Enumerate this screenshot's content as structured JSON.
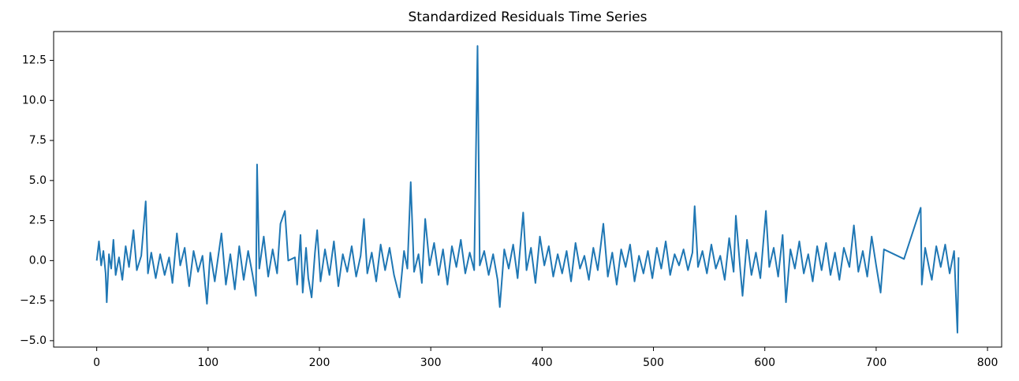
{
  "chart_data": {
    "type": "line",
    "title": "Standardized Residuals Time Series",
    "x": [
      0,
      2,
      4,
      6,
      8,
      9,
      11,
      13,
      15,
      17,
      20,
      23,
      26,
      29,
      33,
      36,
      40,
      44,
      46,
      49,
      53,
      57,
      61,
      65,
      68,
      72,
      75,
      79,
      83,
      87,
      91,
      95,
      99,
      102,
      106,
      109,
      112,
      116,
      120,
      124,
      128,
      132,
      136,
      140,
      143,
      144,
      146,
      150,
      154,
      158,
      162,
      165,
      169,
      172,
      178,
      180,
      183,
      185,
      188,
      190,
      193,
      196,
      198,
      201,
      205,
      209,
      213,
      217,
      221,
      225,
      229,
      233,
      237,
      240,
      243,
      247,
      251,
      255,
      259,
      263,
      267,
      272,
      276,
      279,
      282,
      285,
      289,
      292,
      295,
      299,
      303,
      307,
      311,
      315,
      319,
      323,
      327,
      331,
      335,
      339,
      342,
      344,
      348,
      352,
      356,
      360,
      362,
      366,
      370,
      374,
      378,
      383,
      386,
      390,
      394,
      398,
      402,
      406,
      410,
      414,
      418,
      422,
      426,
      430,
      434,
      438,
      442,
      446,
      450,
      455,
      459,
      463,
      467,
      471,
      475,
      479,
      483,
      487,
      491,
      495,
      499,
      503,
      507,
      511,
      515,
      519,
      523,
      527,
      531,
      535,
      537,
      540,
      544,
      548,
      552,
      556,
      560,
      564,
      568,
      572,
      574,
      578,
      580,
      584,
      588,
      592,
      596,
      601,
      604,
      608,
      612,
      616,
      619,
      623,
      627,
      631,
      635,
      639,
      643,
      647,
      651,
      655,
      659,
      663,
      667,
      671,
      676,
      680,
      684,
      688,
      692,
      696,
      700,
      704,
      707,
      710,
      725,
      740,
      741,
      744,
      748,
      750,
      754,
      758,
      762,
      766,
      770,
      773,
      774
    ],
    "series": [
      {
        "color": "#1f77b4",
        "values": [
          0,
          1.2,
          -0.3,
          0.6,
          -0.8,
          -2.6,
          0.4,
          -0.5,
          1.3,
          -0.9,
          0.2,
          -1.2,
          0.9,
          -0.4,
          1.9,
          -0.6,
          0.3,
          3.7,
          -0.8,
          0.5,
          -1.1,
          0.4,
          -0.9,
          0.2,
          -1.4,
          1.7,
          -0.3,
          0.8,
          -1.6,
          0.6,
          -0.7,
          0.3,
          -2.7,
          0.5,
          -1.3,
          0.2,
          1.7,
          -1.5,
          0.4,
          -1.8,
          0.9,
          -1.2,
          0.6,
          -0.9,
          -2.2,
          6.0,
          -0.5,
          1.5,
          -1.0,
          0.7,
          -0.8,
          2.3,
          3.1,
          0.0,
          0.2,
          -1.5,
          1.6,
          -2.0,
          0.8,
          -1.1,
          -2.3,
          0.5,
          1.9,
          -1.3,
          0.7,
          -0.9,
          1.2,
          -1.6,
          0.4,
          -0.7,
          0.9,
          -1.0,
          0.3,
          2.6,
          -0.8,
          0.5,
          -1.3,
          1.0,
          -0.6,
          0.8,
          -0.9,
          -2.3,
          0.6,
          -0.5,
          4.9,
          -0.7,
          0.4,
          -1.4,
          2.6,
          -0.3,
          1.1,
          -0.9,
          0.7,
          -1.5,
          0.9,
          -0.4,
          1.3,
          -0.8,
          0.5,
          -0.6,
          13.4,
          -0.3,
          0.6,
          -0.9,
          0.4,
          -1.2,
          -2.9,
          0.7,
          -0.5,
          1.0,
          -1.1,
          3.0,
          -0.6,
          0.8,
          -1.4,
          1.5,
          -0.3,
          0.9,
          -1.0,
          0.4,
          -0.8,
          0.6,
          -1.3,
          1.1,
          -0.5,
          0.3,
          -1.2,
          0.8,
          -0.6,
          2.3,
          -1.0,
          0.5,
          -1.5,
          0.7,
          -0.4,
          1.0,
          -1.3,
          0.3,
          -0.8,
          0.6,
          -1.1,
          0.8,
          -0.5,
          1.2,
          -0.9,
          0.4,
          -0.3,
          0.7,
          -0.6,
          0.5,
          3.4,
          -0.4,
          0.6,
          -0.8,
          1.0,
          -0.5,
          0.3,
          -1.2,
          1.4,
          -0.7,
          2.8,
          -0.6,
          -2.2,
          1.3,
          -0.9,
          0.5,
          -1.1,
          3.1,
          -0.4,
          0.8,
          -1.0,
          1.6,
          -2.6,
          0.7,
          -0.5,
          1.2,
          -0.8,
          0.4,
          -1.3,
          0.9,
          -0.6,
          1.1,
          -0.9,
          0.5,
          -1.2,
          0.8,
          -0.4,
          2.2,
          -0.7,
          0.6,
          -1.0,
          1.5,
          -0.3,
          -2.0,
          0.7,
          0.6,
          0.1,
          3.3,
          -1.5,
          0.8,
          -0.6,
          -1.2,
          0.9,
          -0.4,
          1.0,
          -0.8,
          0.6,
          -4.5,
          0.2
        ]
      }
    ],
    "xlim": [
      -38.7,
      812.7
    ],
    "ylim": [
      -5.4,
      14.3
    ],
    "xticks": [
      0,
      100,
      200,
      300,
      400,
      500,
      600,
      700,
      800
    ],
    "yticks": [
      {
        "value": -5.0,
        "label": "−5.0"
      },
      {
        "value": -2.5,
        "label": "−2.5"
      },
      {
        "value": 0.0,
        "label": "0.0"
      },
      {
        "value": 2.5,
        "label": "2.5"
      },
      {
        "value": 5.0,
        "label": "5.0"
      },
      {
        "value": 7.5,
        "label": "7.5"
      },
      {
        "value": 10.0,
        "label": "10.0"
      },
      {
        "value": 12.5,
        "label": "12.5"
      }
    ]
  }
}
